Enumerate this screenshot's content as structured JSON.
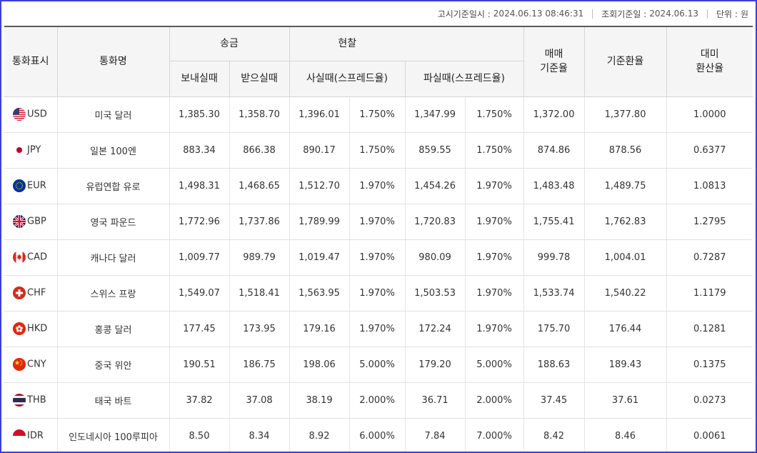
{
  "meta": {
    "notice_label": "고시기준일시 :",
    "notice_value": "2024.06.13 08:46:31",
    "query_label": "조회기준일 :",
    "query_value": "2024.06.13",
    "unit_label": "단위 :",
    "unit_value": "원"
  },
  "headers": {
    "code": "통화표시",
    "name": "통화명",
    "remit": "송금",
    "remit_send": "보내실때",
    "remit_recv": "받으실때",
    "cash": "현찰",
    "cash_buy": "사실때(스프레드율)",
    "cash_sell": "파실때(스프레드율)",
    "trade_base_1": "매매",
    "trade_base_2": "기준율",
    "base_rate": "기준환율",
    "usd_1": "대미",
    "usd_2": "환산율"
  },
  "rows": [
    {
      "flag": "us-flag-icon",
      "code": "USD",
      "name": "미국 달러",
      "send": "1,385.30",
      "recv": "1,358.70",
      "buy": "1,396.01",
      "buy_spread": "1.750%",
      "sell": "1,347.99",
      "sell_spread": "1.750%",
      "trade_base": "1,372.00",
      "base_rate": "1,377.80",
      "usd_rate": "1.0000"
    },
    {
      "flag": "jp-flag-icon",
      "code": "JPY",
      "name": "일본 100엔",
      "send": "883.34",
      "recv": "866.38",
      "buy": "890.17",
      "buy_spread": "1.750%",
      "sell": "859.55",
      "sell_spread": "1.750%",
      "trade_base": "874.86",
      "base_rate": "878.56",
      "usd_rate": "0.6377"
    },
    {
      "flag": "eu-flag-icon",
      "code": "EUR",
      "name": "유럽연합 유로",
      "send": "1,498.31",
      "recv": "1,468.65",
      "buy": "1,512.70",
      "buy_spread": "1.970%",
      "sell": "1,454.26",
      "sell_spread": "1.970%",
      "trade_base": "1,483.48",
      "base_rate": "1,489.75",
      "usd_rate": "1.0813"
    },
    {
      "flag": "gb-flag-icon",
      "code": "GBP",
      "name": "영국 파운드",
      "send": "1,772.96",
      "recv": "1,737.86",
      "buy": "1,789.99",
      "buy_spread": "1.970%",
      "sell": "1,720.83",
      "sell_spread": "1.970%",
      "trade_base": "1,755.41",
      "base_rate": "1,762.83",
      "usd_rate": "1.2795"
    },
    {
      "flag": "ca-flag-icon",
      "code": "CAD",
      "name": "캐나다 달러",
      "send": "1,009.77",
      "recv": "989.79",
      "buy": "1,019.47",
      "buy_spread": "1.970%",
      "sell": "980.09",
      "sell_spread": "1.970%",
      "trade_base": "999.78",
      "base_rate": "1,004.01",
      "usd_rate": "0.7287"
    },
    {
      "flag": "ch-flag-icon",
      "code": "CHF",
      "name": "스위스 프랑",
      "send": "1,549.07",
      "recv": "1,518.41",
      "buy": "1,563.95",
      "buy_spread": "1.970%",
      "sell": "1,503.53",
      "sell_spread": "1.970%",
      "trade_base": "1,533.74",
      "base_rate": "1,540.22",
      "usd_rate": "1.1179"
    },
    {
      "flag": "hk-flag-icon",
      "code": "HKD",
      "name": "홍콩 달러",
      "send": "177.45",
      "recv": "173.95",
      "buy": "179.16",
      "buy_spread": "1.970%",
      "sell": "172.24",
      "sell_spread": "1.970%",
      "trade_base": "175.70",
      "base_rate": "176.44",
      "usd_rate": "0.1281"
    },
    {
      "flag": "cn-flag-icon",
      "code": "CNY",
      "name": "중국 위안",
      "send": "190.51",
      "recv": "186.75",
      "buy": "198.06",
      "buy_spread": "5.000%",
      "sell": "179.20",
      "sell_spread": "5.000%",
      "trade_base": "188.63",
      "base_rate": "189.43",
      "usd_rate": "0.1375"
    },
    {
      "flag": "th-flag-icon",
      "code": "THB",
      "name": "태국 바트",
      "send": "37.82",
      "recv": "37.08",
      "buy": "38.19",
      "buy_spread": "2.000%",
      "sell": "36.71",
      "sell_spread": "2.000%",
      "trade_base": "37.45",
      "base_rate": "37.61",
      "usd_rate": "0.0273"
    },
    {
      "flag": "id-flag-icon",
      "code": "IDR",
      "name": "인도네시아 100루피아",
      "send": "8.50",
      "recv": "8.34",
      "buy": "8.92",
      "buy_spread": "6.000%",
      "sell": "7.84",
      "sell_spread": "7.000%",
      "trade_base": "8.42",
      "base_rate": "8.46",
      "usd_rate": "0.0061"
    }
  ],
  "colors": {
    "border": "#3b3fd8",
    "header_bg": "#f5f5f5"
  }
}
